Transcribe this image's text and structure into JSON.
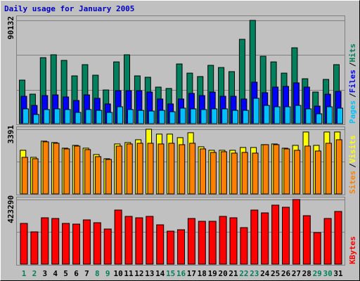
{
  "chart_data": [
    {
      "type": "bar",
      "title": "Daily usage for January 2005",
      "legend_separator": "/",
      "ylim": [
        0,
        90132
      ],
      "yticks": [
        90132
      ],
      "series": [
        {
          "name": "Hits",
          "color": "#00805c",
          "values": [
            38000,
            25750,
            57600,
            60100,
            55200,
            41700,
            51500,
            42300,
            29400,
            53900,
            60100,
            41700,
            40500,
            31900,
            30700,
            52100,
            44100,
            41100,
            50900,
            49000,
            45400,
            73600,
            90132,
            58800,
            53900,
            44100,
            66200,
            39200,
            27600,
            38600,
            51500
          ]
        },
        {
          "name": "Files",
          "color": "#0000ff",
          "values": [
            23900,
            15900,
            24500,
            25100,
            23300,
            20200,
            25100,
            22100,
            17200,
            28800,
            28800,
            28800,
            27600,
            21500,
            17200,
            21500,
            26400,
            24500,
            27600,
            23900,
            23900,
            21500,
            36200,
            27000,
            31900,
            32500,
            35600,
            31900,
            15300,
            25700,
            28200
          ]
        },
        {
          "name": "Pages",
          "color": "#00c0ff",
          "values": [
            12900,
            8000,
            12300,
            12900,
            12300,
            9800,
            12300,
            11600,
            9800,
            14700,
            12300,
            11600,
            11000,
            11600,
            10400,
            13500,
            12900,
            12300,
            12900,
            12900,
            11600,
            11600,
            22100,
            15900,
            14700,
            14700,
            15900,
            12900,
            8600,
            14700,
            13500
          ]
        }
      ]
    },
    {
      "type": "bar",
      "legend_separator": "/",
      "ylim": [
        0,
        3391
      ],
      "yticks": [
        3391
      ],
      "series": [
        {
          "name": "Visits",
          "color": "#ffff00",
          "values": [
            2288,
            1919,
            2768,
            2694,
            2399,
            2546,
            2399,
            2066,
            1845,
            2620,
            2694,
            2841,
            3391,
            3137,
            3137,
            2952,
            3210,
            2472,
            2288,
            2288,
            2288,
            2435,
            2435,
            2583,
            2620,
            2399,
            2546,
            3247,
            2546,
            3247,
            3247
          ]
        },
        {
          "name": "Sites",
          "color": "#ff8000",
          "values": [
            1919,
            1845,
            2731,
            2657,
            2362,
            2509,
            2325,
            1956,
            1808,
            2509,
            2620,
            2657,
            2657,
            2620,
            2657,
            2583,
            2657,
            2362,
            2177,
            2214,
            2140,
            2177,
            2140,
            2583,
            2583,
            2362,
            2288,
            2509,
            2251,
            2657,
            2841
          ]
        }
      ]
    },
    {
      "type": "bar",
      "ylim": [
        0,
        423290
      ],
      "yticks": [
        423290
      ],
      "categories": [
        "1",
        "2",
        "3",
        "4",
        "5",
        "6",
        "7",
        "8",
        "9",
        "10",
        "11",
        "12",
        "13",
        "14",
        "15",
        "16",
        "17",
        "18",
        "19",
        "20",
        "21",
        "22",
        "23",
        "24",
        "25",
        "26",
        "27",
        "28",
        "29",
        "30",
        "31"
      ],
      "category_colors": [
        "#00805c",
        "#00805c",
        "#000000",
        "#000000",
        "#000000",
        "#000000",
        "#000000",
        "#00805c",
        "#00805c",
        "#000000",
        "#000000",
        "#000000",
        "#000000",
        "#000000",
        "#00805c",
        "#00805c",
        "#000000",
        "#000000",
        "#000000",
        "#000000",
        "#000000",
        "#00805c",
        "#00805c",
        "#000000",
        "#000000",
        "#000000",
        "#000000",
        "#000000",
        "#00805c",
        "#00805c",
        "#000000"
      ],
      "series": [
        {
          "name": "KBytes",
          "color": "#ff0000",
          "values": [
            266900,
            211600,
            303700,
            299100,
            266900,
            262300,
            289900,
            271500,
            230100,
            354300,
            312900,
            303700,
            312900,
            257700,
            216200,
            225400,
            299100,
            280700,
            280700,
            312900,
            303700,
            239300,
            354300,
            335900,
            386500,
            372700,
            423290,
            317500,
            207000,
            299100,
            345100
          ]
        }
      ]
    }
  ]
}
